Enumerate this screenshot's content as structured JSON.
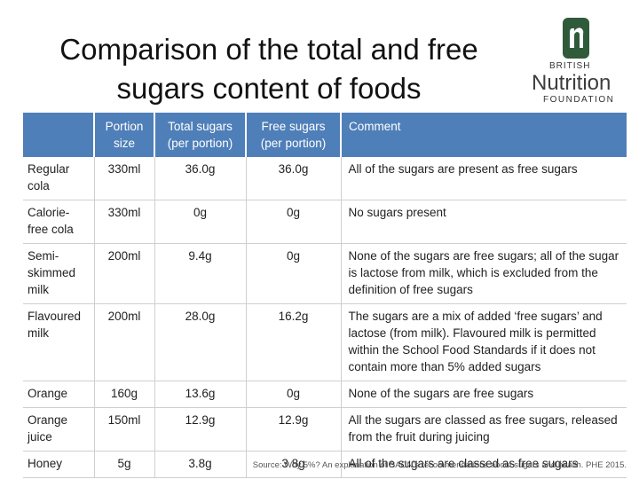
{
  "title": "Comparison of the total and free sugars content of foods",
  "logo": {
    "british": "BRITISH",
    "nutrition": "Nutrition",
    "foundation": "FOUNDATION"
  },
  "table": {
    "headers": [
      "",
      "Portion size",
      "Total sugars (per portion)",
      "Free sugars (per portion)",
      "Comment"
    ],
    "rows": [
      {
        "food": "Regular cola",
        "portion": "330ml",
        "total": "36.0g",
        "free": "36.0g",
        "comment": "All of the sugars are present as free sugars"
      },
      {
        "food": "Calorie-free cola",
        "portion": "330ml",
        "total": "0g",
        "free": "0g",
        "comment": "No sugars present"
      },
      {
        "food": "Semi-skimmed milk",
        "portion": "200ml",
        "total": "9.4g",
        "free": "0g",
        "comment": "None of the sugars are free sugars; all of the sugar is lactose from milk, which is excluded from the definition of free sugars"
      },
      {
        "food": "Flavoured milk",
        "portion": "200ml",
        "total": "28.0g",
        "free": "16.2g",
        "comment": "The sugars are a mix of added ‘free sugars’ and lactose (from milk). Flavoured milk is permitted within the School Food Standards if it does not contain more than 5% added sugars"
      },
      {
        "food": "Orange",
        "portion": "160g",
        "total": "13.6g",
        "free": "0g",
        "comment": "None of the sugars are free sugars"
      },
      {
        "food": "Orange juice",
        "portion": "150ml",
        "total": "12.9g",
        "free": "12.9g",
        "comment": "All the sugars are classed as free sugars, released from the fruit during juicing"
      },
      {
        "food": "Honey",
        "portion": "5g",
        "total": "3.8g",
        "free": "3.8g",
        "comment": "All of the sugars are classed as free sugars"
      }
    ]
  },
  "source": "Source: Why 5%? An explanation of SACN’s recommendations about sugars and health. PHE 2015.",
  "colors": {
    "header_bg": "#4f7fb8",
    "logo_green": "#2f5b3a"
  }
}
